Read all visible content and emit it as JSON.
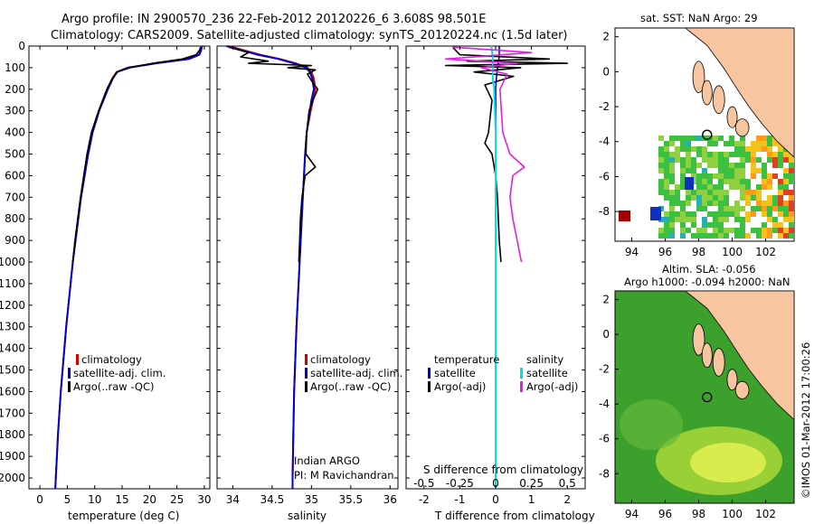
{
  "title": {
    "line1": "Argo profile: IN 2900570_236 22-Feb-2012 20120226_6 3.608S 98.501E",
    "line2": "Climatology: CARS2009. Satellite-adjusted climatology: synTS_20120224.nc (1.5d later)"
  },
  "credit": "©IMOS 01-Mar-2012 17:00:26",
  "legend": {
    "items": [
      "climatology",
      "satellite-adj. clim.",
      "Argo(..raw -QC)"
    ]
  },
  "colors": {
    "climatology": "#d00000",
    "satellite": "#0000d0",
    "argo": "#000000",
    "s_satellite": "#00e0e0",
    "s_argo": "#e020e0",
    "land": "#f7c59f"
  },
  "panels": {
    "temperature": {
      "xlabel": "temperature (deg C)",
      "xticks": [
        "0",
        "5",
        "10",
        "15",
        "20",
        "25",
        "30"
      ]
    },
    "salinity": {
      "xlabel": "salinity",
      "xticks": [
        "34",
        "34.5",
        "35",
        "35.5",
        "36"
      ],
      "note_line1": "Indian ARGO",
      "note_line2": "PI: M Ravichandran"
    },
    "difference": {
      "xlabel": "T difference from climatology",
      "s_label": "S difference from climatology",
      "xticks_t": [
        "-2",
        "-1",
        "0",
        "1",
        "2"
      ],
      "xticks_s": [
        "-0.5",
        "-0.25",
        "0",
        "0.25",
        "0.5"
      ],
      "legend": {
        "temperature_heading": "temperature",
        "salinity_heading": "salinity",
        "t_satellite": "satellite",
        "t_argo": "Argo(-adj)",
        "s_satellite": "satellite",
        "s_argo": "Argo(-adj)"
      }
    }
  },
  "maps": {
    "sst": {
      "title": "sat. SST: NaN Argo: 29",
      "xticks": [
        "94",
        "96",
        "98",
        "100",
        "102"
      ],
      "yticks": [
        "2",
        "0",
        "-2",
        "-4",
        "-6",
        "-8"
      ]
    },
    "sla": {
      "title1": "Altim. SLA: -0.056",
      "title2": "Argo h1000: -0.094 h2000: NaN",
      "xticks": [
        "94",
        "96",
        "98",
        "100",
        "102"
      ],
      "yticks": [
        "2",
        "0",
        "-2",
        "-4",
        "-6",
        "-8"
      ]
    }
  },
  "chart_data": [
    {
      "type": "line",
      "panel": "temperature",
      "xlabel": "temperature (deg C)",
      "ylabel": "",
      "xlim": [
        -2,
        31
      ],
      "ylim": [
        2050,
        0
      ],
      "yticks": [
        0,
        100,
        200,
        300,
        400,
        500,
        600,
        700,
        800,
        900,
        1000,
        1100,
        1200,
        1300,
        1400,
        1500,
        1600,
        1700,
        1800,
        1900,
        2000
      ],
      "series": [
        {
          "name": "climatology",
          "depth": [
            0,
            20,
            40,
            60,
            80,
            100,
            120,
            150,
            200,
            300,
            400,
            500,
            700,
            1000,
            1300,
            1600,
            1800,
            2000,
            2050
          ],
          "values": [
            29.5,
            29.3,
            29.0,
            27.0,
            21.0,
            16.0,
            14.0,
            13.2,
            12.3,
            10.8,
            9.6,
            8.8,
            7.5,
            6.0,
            4.8,
            3.8,
            3.3,
            2.9,
            2.8
          ]
        },
        {
          "name": "satellite-adj. clim.",
          "depth": [
            0,
            20,
            40,
            60,
            80,
            100,
            120,
            150,
            200,
            300,
            400,
            500,
            700,
            1000,
            1300,
            1600,
            1800,
            2000,
            2050
          ],
          "values": [
            29.6,
            29.4,
            29.1,
            27.2,
            21.2,
            16.2,
            14.1,
            13.3,
            12.4,
            10.8,
            9.6,
            8.8,
            7.5,
            6.0,
            4.8,
            3.8,
            3.3,
            2.9,
            2.8
          ]
        },
        {
          "name": "Argo(..raw -QC)",
          "depth": [
            5,
            20,
            40,
            60,
            80,
            100,
            120,
            140,
            160,
            200,
            300,
            400,
            500,
            600,
            700,
            800,
            900,
            1000
          ],
          "values": [
            29.3,
            29.1,
            28.5,
            26.0,
            20.5,
            16.5,
            14.0,
            13.5,
            13.0,
            12.2,
            10.7,
            9.4,
            8.6,
            8.0,
            7.4,
            6.9,
            6.4,
            6.0
          ]
        }
      ]
    },
    {
      "type": "line",
      "panel": "salinity",
      "xlabel": "salinity",
      "xlim": [
        33.8,
        36.1
      ],
      "ylim": [
        2050,
        0
      ],
      "series": [
        {
          "name": "climatology",
          "depth": [
            0,
            20,
            40,
            60,
            80,
            100,
            120,
            150,
            200,
            250,
            300,
            400,
            500,
            700,
            1000,
            1300,
            1600,
            1800,
            2000,
            2050
          ],
          "values": [
            33.95,
            34.15,
            34.35,
            34.6,
            34.8,
            34.95,
            35.0,
            35.03,
            35.05,
            35.02,
            34.99,
            34.94,
            34.92,
            34.89,
            34.85,
            34.81,
            34.78,
            34.77,
            34.76,
            34.76
          ]
        },
        {
          "name": "satellite-adj. clim.",
          "depth": [
            0,
            20,
            40,
            60,
            80,
            100,
            120,
            150,
            200,
            250,
            300,
            400,
            500,
            700,
            1000,
            1300,
            1600,
            1800,
            2000,
            2050
          ],
          "values": [
            33.92,
            34.12,
            34.32,
            34.58,
            34.78,
            34.93,
            34.98,
            35.01,
            35.03,
            35.0,
            34.98,
            34.94,
            34.92,
            34.89,
            34.85,
            34.81,
            34.78,
            34.77,
            34.76,
            34.76
          ]
        },
        {
          "name": "Argo(..raw -QC)",
          "depth": [
            5,
            30,
            50,
            70,
            80,
            90,
            100,
            110,
            130,
            160,
            200,
            250,
            300,
            400,
            500,
            560,
            600,
            700,
            800,
            900,
            1000
          ],
          "values": [
            33.95,
            34.2,
            34.1,
            34.45,
            34.2,
            35.0,
            34.7,
            35.05,
            34.95,
            35.0,
            35.08,
            35.02,
            34.97,
            34.94,
            34.93,
            35.05,
            34.92,
            34.88,
            34.86,
            34.85,
            34.84
          ]
        }
      ]
    },
    {
      "type": "line",
      "panel": "difference",
      "xlabel": "T difference from climatology",
      "xlim_t": [
        -2.5,
        2.5
      ],
      "xlim_s": [
        -0.625,
        0.625
      ],
      "ylim": [
        2050,
        0
      ],
      "series": [
        {
          "name": "temperature satellite",
          "axis": "t",
          "depth": [
            0,
            50,
            100,
            150,
            200,
            400,
            700,
            1000,
            1500,
            2050
          ],
          "values": [
            0.1,
            0.1,
            0.05,
            0.02,
            0.0,
            0.0,
            0.0,
            0.0,
            0.0,
            0.0
          ]
        },
        {
          "name": "temperature Argo(-adj)",
          "axis": "t",
          "depth": [
            5,
            40,
            60,
            70,
            80,
            90,
            100,
            120,
            140,
            180,
            250,
            400,
            450,
            500,
            600,
            700,
            900,
            1000
          ],
          "values": [
            -1.2,
            -1.0,
            1.5,
            -0.8,
            2.0,
            -1.4,
            0.7,
            -0.6,
            0.5,
            -0.3,
            -0.1,
            -0.2,
            -0.3,
            -0.1,
            0.0,
            0.05,
            0.1,
            0.15
          ]
        },
        {
          "name": "salinity satellite",
          "axis": "s",
          "depth": [
            0,
            50,
            100,
            150,
            200,
            400,
            700,
            1000,
            1500,
            2050
          ],
          "values": [
            -0.03,
            -0.02,
            -0.02,
            -0.02,
            -0.01,
            0.0,
            0.0,
            0.0,
            0.0,
            0.0
          ]
        },
        {
          "name": "salinity Argo(-adj)",
          "axis": "s",
          "depth": [
            5,
            30,
            60,
            80,
            100,
            130,
            200,
            400,
            500,
            560,
            600,
            700,
            800,
            900,
            1000
          ],
          "values": [
            -0.3,
            0.25,
            -0.35,
            0.15,
            -0.1,
            0.08,
            0.03,
            0.05,
            0.1,
            0.2,
            0.12,
            0.1,
            0.12,
            0.15,
            0.18
          ]
        }
      ]
    }
  ]
}
